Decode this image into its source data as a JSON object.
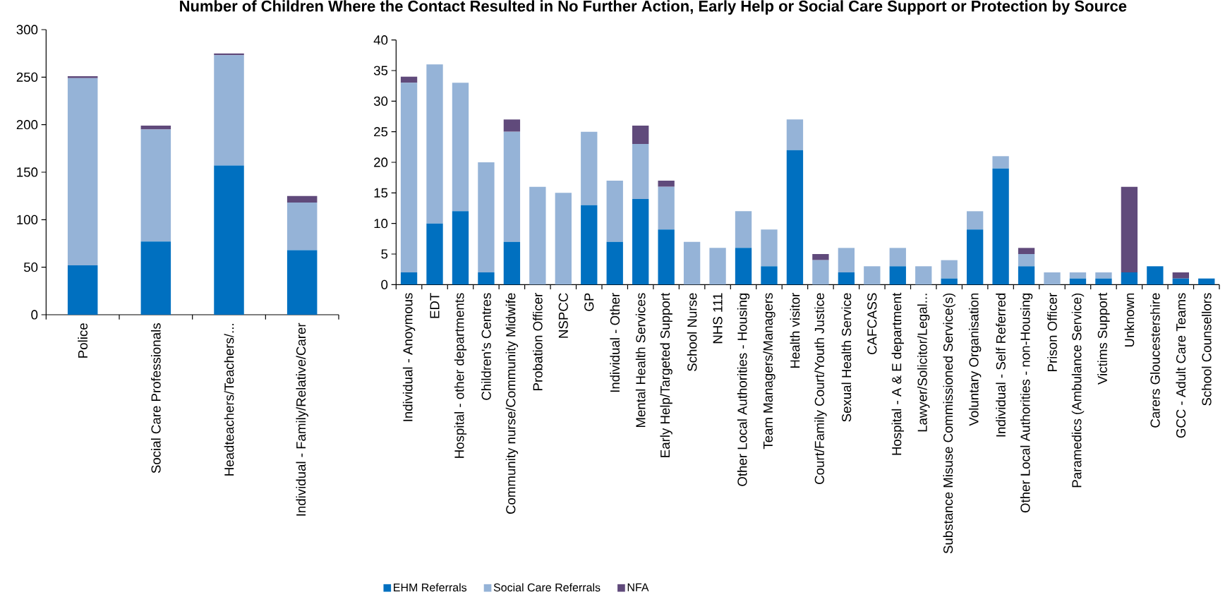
{
  "chart_data": [
    {
      "type": "bar",
      "stacked": true,
      "categories": [
        "Police",
        "Social Care Professionals",
        "Headteachers/Teachers/...",
        "Individual - Family/Relative/Carer"
      ],
      "series": [
        {
          "color": "#0070c0",
          "values": [
            52,
            77,
            157,
            68
          ]
        },
        {
          "color": "#95b3d7",
          "values": [
            197,
            118,
            116,
            50
          ]
        },
        {
          "color": "#604a7b",
          "values": [
            2,
            4,
            2,
            7
          ]
        }
      ],
      "ylim": [
        0,
        300
      ],
      "yticks": [
        0,
        50,
        100,
        150,
        200,
        250,
        300
      ]
    },
    {
      "type": "bar",
      "stacked": true,
      "title": "Number of Children Where the Contact Resulted in No Further Action, Early Help or Social Care Support or Protection by Source",
      "categories": [
        "Individual - Anoymous",
        "EDT",
        "Hospital - other departments",
        "Children's Centres",
        "Community nurse/Community Midwife",
        "Probation Officer",
        "NSPCC",
        "GP",
        "Individual - Other",
        "Mental Health Services",
        "Early Help/Targeted Support",
        "School Nurse",
        "NHS 111",
        "Other Local Authorities - Housing",
        "Team Managers/Managers",
        "Health visitor",
        "Court/Family Court/Youth Justice",
        "Sexual Health Service",
        "CAFCASS",
        "Hospital - A & E department",
        "Lawyer/Solicitor/Legal...",
        "Substance Misuse Commissioned Service(s)",
        "Voluntary Organisation",
        "Individual - Self Referred",
        "Other Local Authorities - non-Housing",
        "Prison Officer",
        "Paramedics (Ambulance Service)",
        "Victims Support",
        "Unknown",
        "Carers Gloucestershire",
        "GCC - Adult Care Teams",
        "School Counsellors"
      ],
      "series": [
        {
          "name": "EHM Referrals",
          "color": "#0070c0",
          "values": [
            2,
            10,
            12,
            2,
            7,
            0,
            0,
            13,
            7,
            14,
            9,
            0,
            0,
            6,
            3,
            22,
            0,
            2,
            0,
            3,
            0,
            1,
            9,
            19,
            3,
            0,
            1,
            1,
            2,
            3,
            1,
            1
          ]
        },
        {
          "name": "Social Care Referrals",
          "color": "#95b3d7",
          "values": [
            31,
            26,
            21,
            18,
            18,
            16,
            15,
            12,
            10,
            9,
            7,
            7,
            6,
            6,
            6,
            5,
            4,
            4,
            3,
            3,
            3,
            3,
            3,
            2,
            2,
            2,
            1,
            1,
            0,
            0,
            0,
            0
          ]
        },
        {
          "name": "NFA",
          "color": "#604a7b",
          "values": [
            1,
            0,
            0,
            0,
            2,
            0,
            0,
            0,
            0,
            3,
            1,
            0,
            0,
            0,
            0,
            0,
            1,
            0,
            0,
            0,
            0,
            0,
            0,
            0,
            1,
            0,
            0,
            0,
            14,
            0,
            1,
            0
          ]
        }
      ],
      "ylim": [
        0,
        40
      ],
      "yticks": [
        0,
        5,
        10,
        15,
        20,
        25,
        30,
        35,
        40
      ],
      "legend": "bottom"
    }
  ]
}
